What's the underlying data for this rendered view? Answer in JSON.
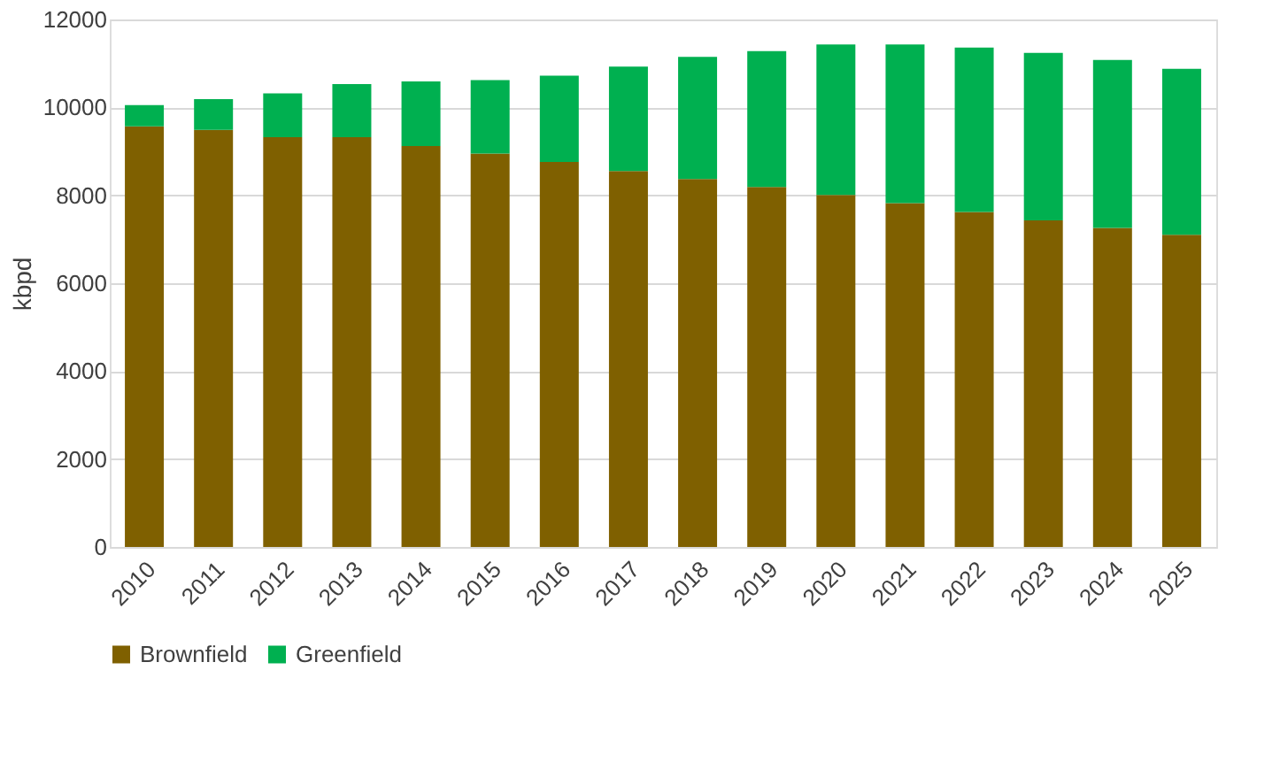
{
  "chart_data": {
    "type": "bar",
    "stacked": true,
    "ylabel": "kbpd",
    "categories": [
      "2010",
      "2011",
      "2012",
      "2013",
      "2014",
      "2015",
      "2016",
      "2017",
      "2018",
      "2019",
      "2020",
      "2021",
      "2022",
      "2023",
      "2024",
      "2025"
    ],
    "series": [
      {
        "name": "Brownfield",
        "color": "#7f6000",
        "values": [
          9570,
          9490,
          9320,
          9320,
          9120,
          8950,
          8760,
          8550,
          8370,
          8190,
          8010,
          7820,
          7620,
          7430,
          7260,
          7100
        ]
      },
      {
        "name": "Greenfield",
        "color": "#00b050",
        "values": [
          480,
          700,
          1000,
          1210,
          1470,
          1670,
          1960,
          2380,
          2780,
          3090,
          3420,
          3610,
          3740,
          3810,
          3820,
          3780
        ]
      }
    ],
    "ylim": [
      0,
      12000
    ],
    "yticks": [
      0,
      2000,
      4000,
      6000,
      8000,
      10000,
      12000
    ],
    "grid": "y",
    "legend": "bottom"
  }
}
